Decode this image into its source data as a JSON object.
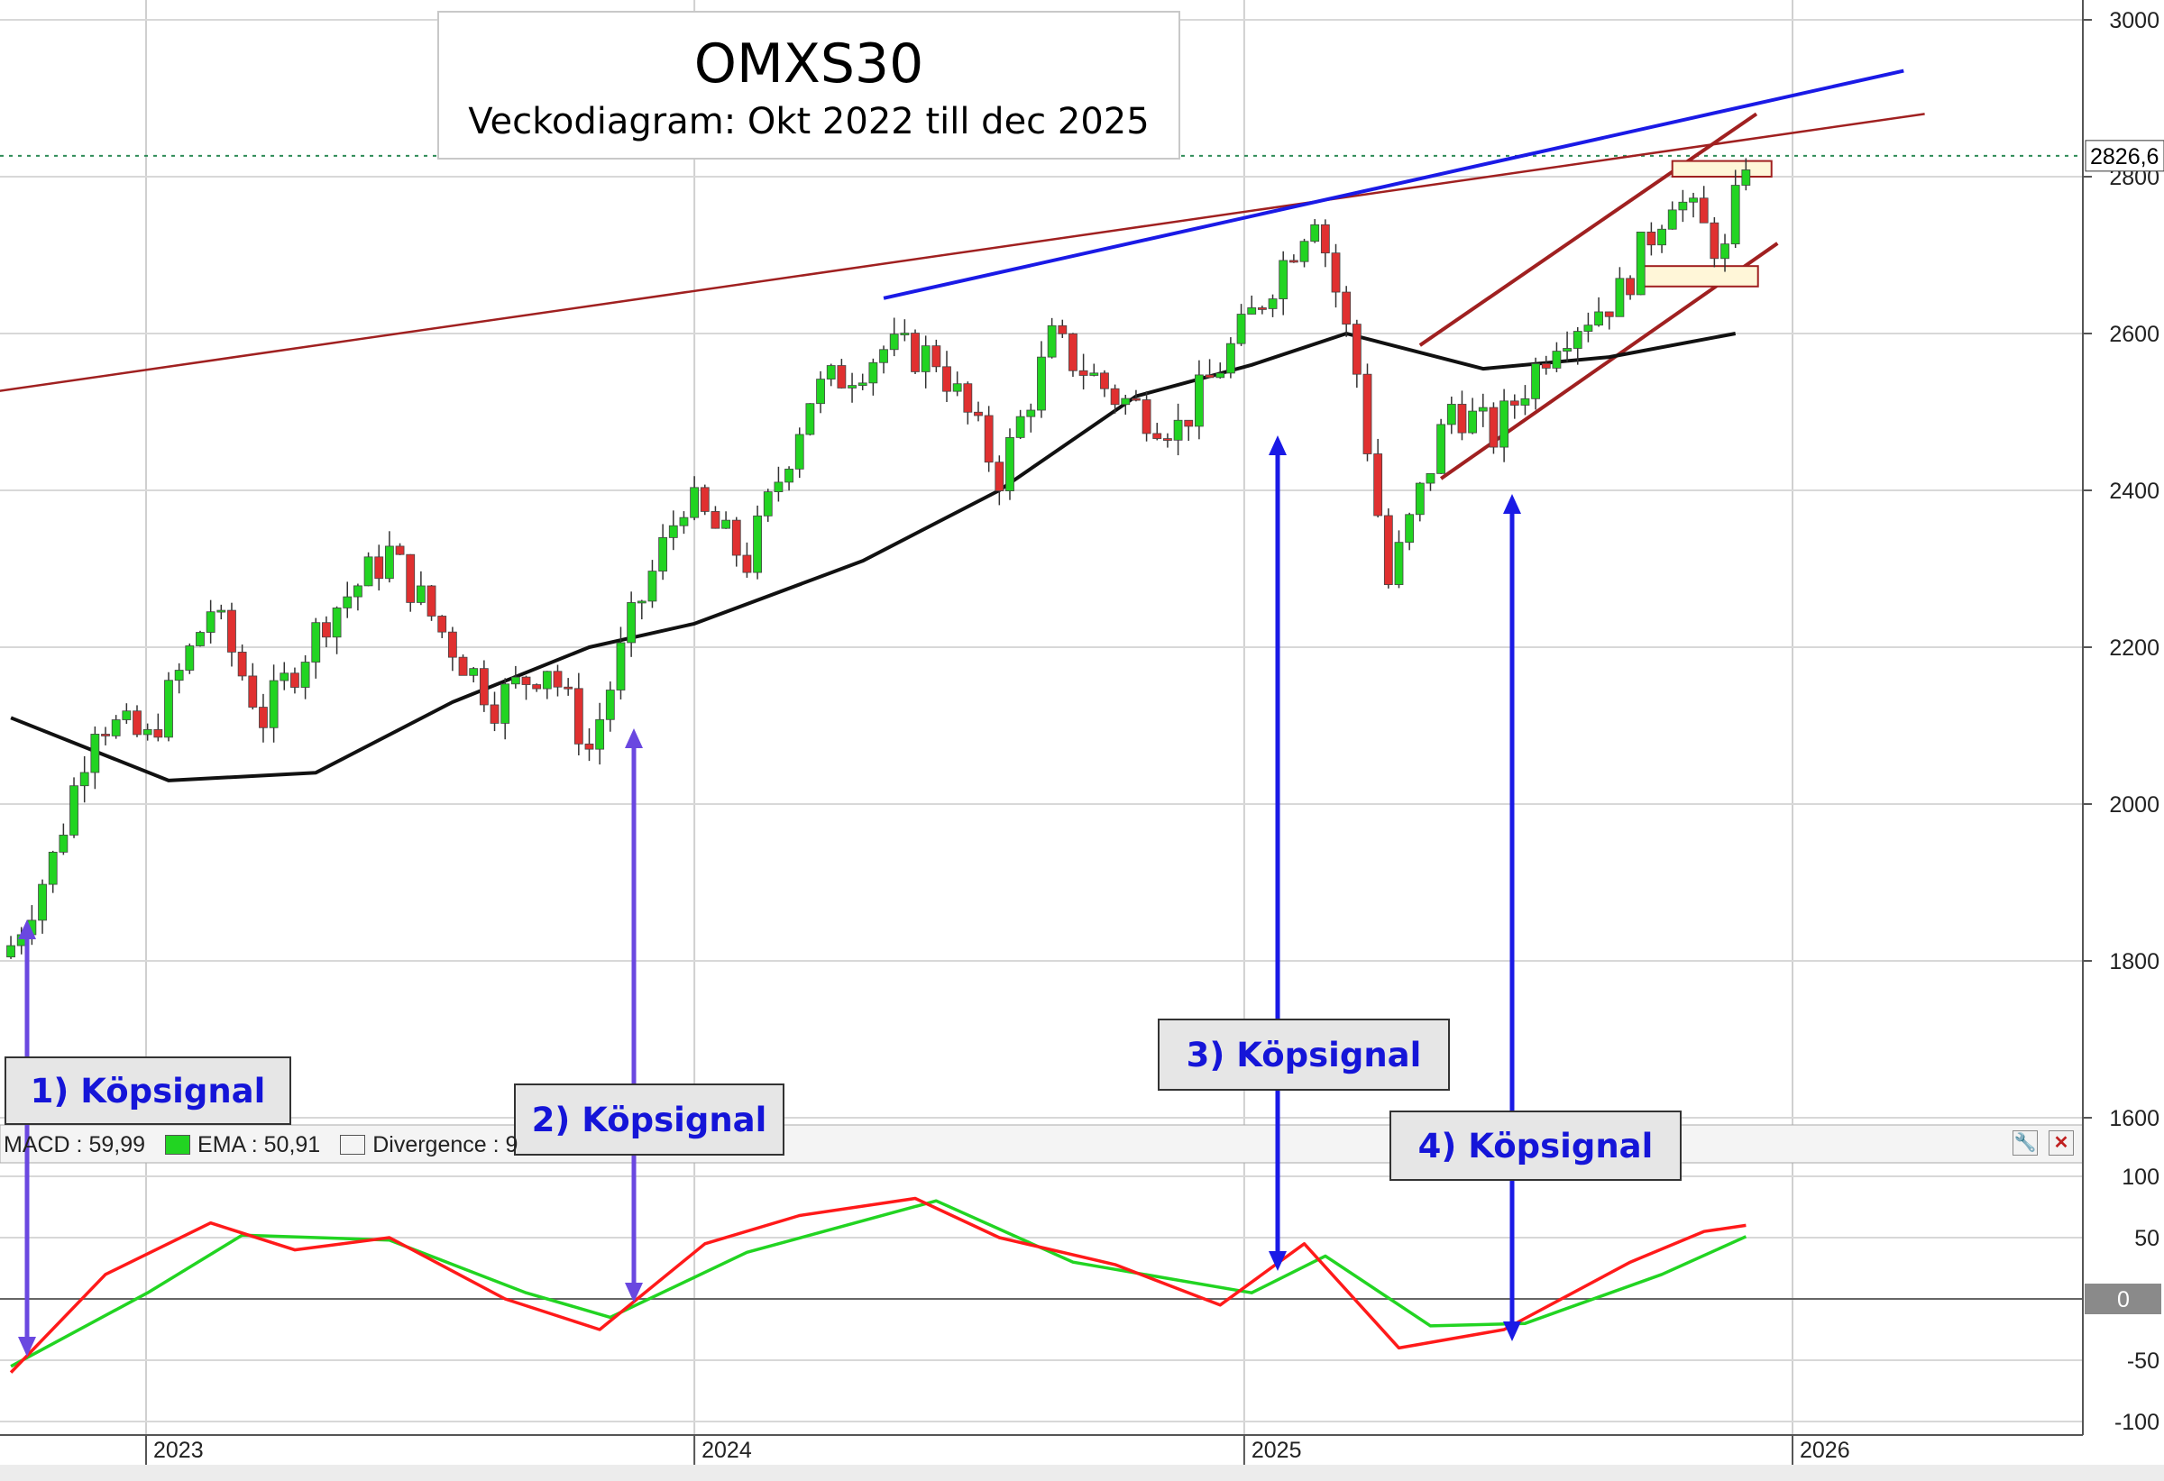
{
  "title": {
    "main": "OMXS30",
    "subtitle": "Veckodiagram: Okt 2022 till dec 2025"
  },
  "signals": [
    {
      "label": "1) Köpsignal"
    },
    {
      "label": "2) Köpsignal"
    },
    {
      "label": "3) Köpsignal"
    },
    {
      "label": "4) Köpsignal"
    }
  ],
  "macd_legend": {
    "macd": "MACD : 59,99",
    "ema": "EMA : 50,91",
    "divergence": "Divergence : 9"
  },
  "colors": {
    "up": "#22d422",
    "down": "#e03030",
    "ma": "#111111",
    "trend_blue": "#1a1ae6",
    "trend_red": "#a02020",
    "macd": "#ff1a1a",
    "ema": "#22d422",
    "arrow_purple": "#6a48e0",
    "arrow_blue": "#1a1ae6"
  },
  "chart_data": [
    {
      "type": "candlestick",
      "title": "OMXS30",
      "subtitle": "Veckodiagram: Okt 2022 till dec 2025",
      "period": "weekly",
      "x_range": [
        "2022-10",
        "2025-12"
      ],
      "x_ticks": [
        "2023",
        "2024",
        "2025",
        "2026"
      ],
      "y_ticks": [
        1600,
        1800,
        2000,
        2200,
        2400,
        2600,
        2800,
        3000
      ],
      "ylim": [
        1580,
        3010
      ],
      "last_value_label": "2826,6",
      "last_value": 2826.6,
      "close_series": [
        {
          "date": "2022-10-03",
          "close": 1820
        },
        {
          "date": "2022-10-31",
          "close": 1930
        },
        {
          "date": "2022-11-28",
          "close": 2110
        },
        {
          "date": "2023-01-02",
          "close": 2080
        },
        {
          "date": "2023-02-13",
          "close": 2250
        },
        {
          "date": "2023-03-20",
          "close": 2110
        },
        {
          "date": "2023-05-01",
          "close": 2240
        },
        {
          "date": "2023-06-12",
          "close": 2320
        },
        {
          "date": "2023-07-17",
          "close": 2220
        },
        {
          "date": "2023-08-21",
          "close": 2130
        },
        {
          "date": "2023-09-25",
          "close": 2180
        },
        {
          "date": "2023-10-23",
          "close": 2070
        },
        {
          "date": "2023-11-20",
          "close": 2230
        },
        {
          "date": "2023-12-25",
          "close": 2390
        },
        {
          "date": "2024-02-05",
          "close": 2310
        },
        {
          "date": "2024-03-18",
          "close": 2520
        },
        {
          "date": "2024-05-06",
          "close": 2580
        },
        {
          "date": "2024-06-10",
          "close": 2570
        },
        {
          "date": "2024-07-22",
          "close": 2420
        },
        {
          "date": "2024-08-26",
          "close": 2590
        },
        {
          "date": "2024-10-07",
          "close": 2520
        },
        {
          "date": "2024-11-18",
          "close": 2480
        },
        {
          "date": "2024-12-30",
          "close": 2600
        },
        {
          "date": "2025-02-17",
          "close": 2760
        },
        {
          "date": "2025-03-17",
          "close": 2550
        },
        {
          "date": "2025-04-07",
          "close": 2280
        },
        {
          "date": "2025-05-19",
          "close": 2510
        },
        {
          "date": "2025-06-16",
          "close": 2470
        },
        {
          "date": "2025-07-28",
          "close": 2600
        },
        {
          "date": "2025-09-08",
          "close": 2650
        },
        {
          "date": "2025-10-13",
          "close": 2780
        },
        {
          "date": "2025-11-17",
          "close": 2700
        },
        {
          "date": "2025-12-01",
          "close": 2826.6
        }
      ],
      "moving_average": [
        {
          "date": "2022-10-03",
          "value": 2110
        },
        {
          "date": "2023-01-16",
          "value": 2030
        },
        {
          "date": "2023-04-24",
          "value": 2040
        },
        {
          "date": "2023-07-24",
          "value": 2130
        },
        {
          "date": "2023-10-23",
          "value": 2200
        },
        {
          "date": "2024-01-01",
          "value": 2230
        },
        {
          "date": "2024-04-22",
          "value": 2310
        },
        {
          "date": "2024-07-22",
          "value": 2400
        },
        {
          "date": "2024-10-21",
          "value": 2520
        },
        {
          "date": "2025-01-06",
          "value": 2560
        },
        {
          "date": "2025-03-10",
          "value": 2600
        },
        {
          "date": "2025-06-09",
          "value": 2555
        },
        {
          "date": "2025-09-01",
          "value": 2570
        },
        {
          "date": "2025-11-24",
          "value": 2600
        }
      ]
    },
    {
      "type": "line",
      "panel": "MACD",
      "y_ticks": [
        -100,
        -50,
        0,
        50,
        100
      ],
      "ylim": [
        -100,
        105
      ],
      "series": [
        {
          "name": "MACD",
          "points": [
            {
              "date": "2022-10-03",
              "value": -60
            },
            {
              "date": "2022-12-05",
              "value": 20
            },
            {
              "date": "2023-02-13",
              "value": 62
            },
            {
              "date": "2023-04-10",
              "value": 40
            },
            {
              "date": "2023-06-12",
              "value": 50
            },
            {
              "date": "2023-08-28",
              "value": 0
            },
            {
              "date": "2023-10-30",
              "value": -25
            },
            {
              "date": "2024-01-08",
              "value": 45
            },
            {
              "date": "2024-03-11",
              "value": 68
            },
            {
              "date": "2024-05-27",
              "value": 82
            },
            {
              "date": "2024-07-22",
              "value": 50
            },
            {
              "date": "2024-10-07",
              "value": 28
            },
            {
              "date": "2024-12-16",
              "value": -5
            },
            {
              "date": "2025-02-10",
              "value": 45
            },
            {
              "date": "2025-04-14",
              "value": -40
            },
            {
              "date": "2025-06-23",
              "value": -25
            },
            {
              "date": "2025-09-15",
              "value": 30
            },
            {
              "date": "2025-11-03",
              "value": 55
            },
            {
              "date": "2025-12-01",
              "value": 59.99
            }
          ]
        },
        {
          "name": "EMA",
          "points": [
            {
              "date": "2022-10-03",
              "value": -55
            },
            {
              "date": "2023-01-02",
              "value": 5
            },
            {
              "date": "2023-03-06",
              "value": 52
            },
            {
              "date": "2023-06-12",
              "value": 48
            },
            {
              "date": "2023-09-11",
              "value": 5
            },
            {
              "date": "2023-11-06",
              "value": -15
            },
            {
              "date": "2024-02-05",
              "value": 38
            },
            {
              "date": "2024-06-10",
              "value": 80
            },
            {
              "date": "2024-09-09",
              "value": 30
            },
            {
              "date": "2025-01-06",
              "value": 5
            },
            {
              "date": "2025-02-24",
              "value": 35
            },
            {
              "date": "2025-05-05",
              "value": -22
            },
            {
              "date": "2025-07-07",
              "value": -20
            },
            {
              "date": "2025-10-06",
              "value": 20
            },
            {
              "date": "2025-12-01",
              "value": 50.91
            }
          ]
        }
      ]
    }
  ]
}
